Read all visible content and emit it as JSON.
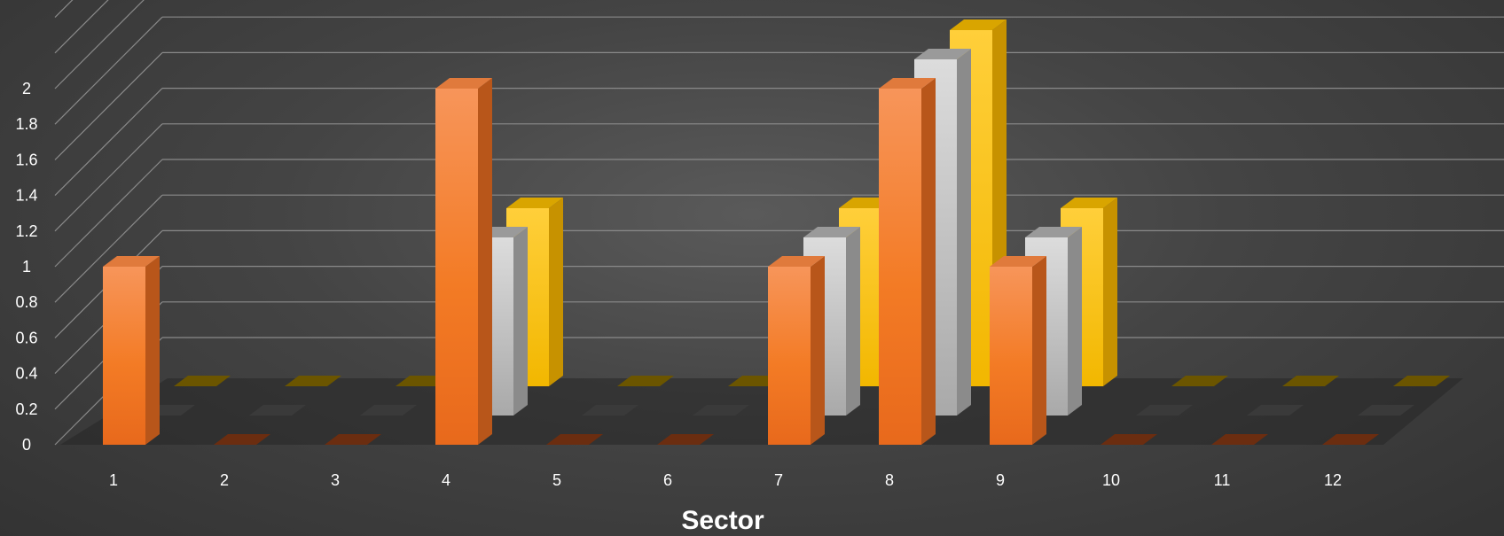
{
  "chart_data": {
    "type": "bar",
    "subtype": "3d-clustered-column",
    "title": "",
    "xlabel": "Sector",
    "ylabel": "",
    "categories": [
      "1",
      "2",
      "3",
      "4",
      "5",
      "6",
      "7",
      "8",
      "9",
      "10",
      "11",
      "12"
    ],
    "series": [
      {
        "values": [
          1,
          0,
          0,
          2,
          0,
          0,
          1,
          2,
          1,
          0,
          0,
          0
        ],
        "color": "#f07c2a"
      },
      {
        "values": [
          0,
          0,
          0,
          1,
          0,
          0,
          1,
          2,
          1,
          0,
          0,
          0
        ],
        "color": "#b8b8b8"
      },
      {
        "values": [
          0,
          0,
          0,
          1,
          0,
          0,
          1,
          2,
          1,
          0,
          0,
          0
        ],
        "color": "#ffc20e"
      }
    ],
    "ylim": [
      0,
      2.4
    ],
    "yticks": [
      "0",
      "0.2",
      "0.4",
      "0.6",
      "0.8",
      "1",
      "1.2",
      "1.4",
      "1.6",
      "1.8",
      "2"
    ],
    "grid": true,
    "legend": "none"
  }
}
